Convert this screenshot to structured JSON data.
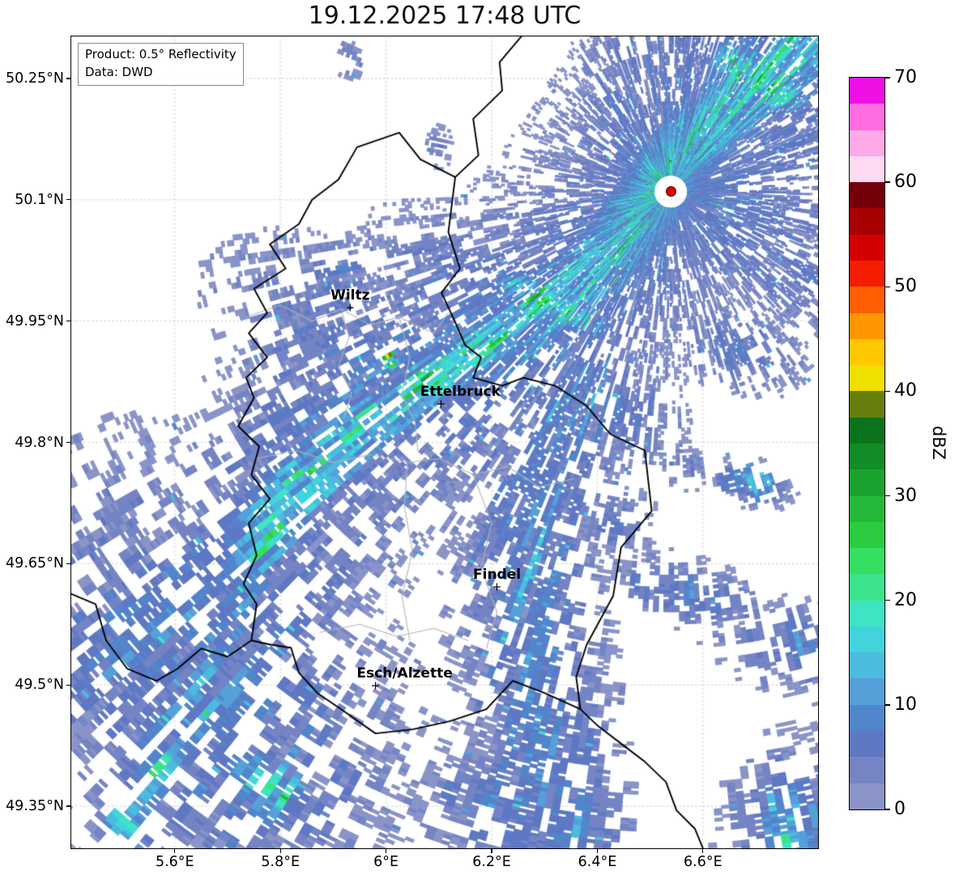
{
  "title": "19.12.2025 17:48 UTC",
  "info_box": {
    "product": "Product: 0.5° Reflectivity",
    "data_source": "Data: DWD"
  },
  "map": {
    "extent": {
      "lon_min": 5.404,
      "lon_max": 6.818,
      "lat_min": 49.298,
      "lat_max": 50.302
    },
    "x_ticks": [
      {
        "value": 5.6,
        "label": "5.6°E"
      },
      {
        "value": 5.8,
        "label": "5.8°E"
      },
      {
        "value": 6.0,
        "label": "6°E"
      },
      {
        "value": 6.2,
        "label": "6.2°E"
      },
      {
        "value": 6.4,
        "label": "6.4°E"
      },
      {
        "value": 6.6,
        "label": "6.6°E"
      }
    ],
    "y_ticks": [
      {
        "value": 50.25,
        "label": "50.25°N"
      },
      {
        "value": 50.1,
        "label": "50.1°N"
      },
      {
        "value": 49.95,
        "label": "49.95°N"
      },
      {
        "value": 49.8,
        "label": "49.8°N"
      },
      {
        "value": 49.65,
        "label": "49.65°N"
      },
      {
        "value": 49.5,
        "label": "49.5°N"
      },
      {
        "value": 49.35,
        "label": "49.35°N"
      }
    ],
    "city_marker_glyph": "+",
    "cities": [
      {
        "name": "Wiltz",
        "lon": 5.932,
        "lat": 49.966,
        "label_dx": 0
      },
      {
        "name": "Ettelbruck",
        "lon": 6.104,
        "lat": 49.847,
        "label_dx": 24
      },
      {
        "name": "Findel",
        "lon": 6.21,
        "lat": 49.62,
        "label_dx": 0
      },
      {
        "name": "Esch/Alzette",
        "lon": 5.98,
        "lat": 49.498,
        "label_dx": 36
      }
    ],
    "radar_site": {
      "lon": 6.539,
      "lat": 50.11,
      "color": "#dd0000"
    },
    "country_borders": [
      [
        [
          6.025,
          50.183
        ],
        [
          6.065,
          50.15
        ],
        [
          6.131,
          50.128
        ],
        [
          6.118,
          50.06
        ],
        [
          6.14,
          50.015
        ],
        [
          6.105,
          49.985
        ],
        [
          6.13,
          49.95
        ],
        [
          6.15,
          49.92
        ],
        [
          6.18,
          49.905
        ],
        [
          6.165,
          49.88
        ],
        [
          6.22,
          49.87
        ],
        [
          6.26,
          49.88
        ],
        [
          6.32,
          49.87
        ],
        [
          6.38,
          49.845
        ],
        [
          6.425,
          49.81
        ],
        [
          6.49,
          49.79
        ],
        [
          6.503,
          49.715
        ],
        [
          6.445,
          49.67
        ],
        [
          6.43,
          49.61
        ],
        [
          6.38,
          49.55
        ],
        [
          6.36,
          49.51
        ],
        [
          6.368,
          49.47
        ],
        [
          6.3,
          49.49
        ],
        [
          6.24,
          49.505
        ],
        [
          6.19,
          49.47
        ],
        [
          6.12,
          49.455
        ],
        [
          6.05,
          49.445
        ],
        [
          5.98,
          49.44
        ],
        [
          5.915,
          49.47
        ],
        [
          5.87,
          49.49
        ],
        [
          5.835,
          49.515
        ],
        [
          5.82,
          49.546
        ],
        [
          5.78,
          49.55
        ],
        [
          5.745,
          49.555
        ],
        [
          5.755,
          49.6
        ],
        [
          5.73,
          49.625
        ],
        [
          5.755,
          49.66
        ],
        [
          5.74,
          49.7
        ],
        [
          5.78,
          49.73
        ],
        [
          5.745,
          49.76
        ],
        [
          5.76,
          49.795
        ],
        [
          5.72,
          49.82
        ],
        [
          5.75,
          49.855
        ],
        [
          5.735,
          49.88
        ],
        [
          5.775,
          49.905
        ],
        [
          5.74,
          49.935
        ],
        [
          5.775,
          49.96
        ],
        [
          5.75,
          49.99
        ],
        [
          5.81,
          50.015
        ],
        [
          5.78,
          50.045
        ],
        [
          5.835,
          50.07
        ],
        [
          5.86,
          50.1
        ],
        [
          5.91,
          50.125
        ],
        [
          5.945,
          50.165
        ],
        [
          6.025,
          50.183
        ]
      ],
      [
        [
          6.131,
          50.128
        ],
        [
          6.175,
          50.155
        ],
        [
          6.165,
          50.2
        ],
        [
          6.22,
          50.235
        ],
        [
          6.215,
          50.27
        ],
        [
          6.26,
          50.305
        ],
        [
          6.255,
          50.335
        ]
      ],
      [
        [
          5.395,
          49.615
        ],
        [
          5.45,
          49.6
        ],
        [
          5.47,
          49.555
        ],
        [
          5.51,
          49.52
        ],
        [
          5.565,
          49.505
        ],
        [
          5.605,
          49.52
        ],
        [
          5.65,
          49.545
        ],
        [
          5.7,
          49.535
        ],
        [
          5.745,
          49.555
        ]
      ],
      [
        [
          6.368,
          49.47
        ],
        [
          6.4,
          49.45
        ],
        [
          6.45,
          49.425
        ],
        [
          6.49,
          49.405
        ],
        [
          6.53,
          49.38
        ],
        [
          6.55,
          49.345
        ],
        [
          6.585,
          49.322
        ],
        [
          6.605,
          49.29
        ]
      ]
    ],
    "admin_borders": [
      [
        [
          5.735,
          49.955
        ],
        [
          5.8,
          49.97
        ],
        [
          5.86,
          49.95
        ],
        [
          5.915,
          49.965
        ],
        [
          5.97,
          49.945
        ],
        [
          6.025,
          49.955
        ],
        [
          6.09,
          49.935
        ],
        [
          6.118,
          49.96
        ]
      ],
      [
        [
          6.025,
          49.955
        ],
        [
          6.045,
          49.905
        ],
        [
          6.03,
          49.86
        ],
        [
          6.055,
          49.825
        ],
        [
          6.06,
          49.79
        ]
      ],
      [
        [
          5.755,
          49.78
        ],
        [
          5.83,
          49.79
        ],
        [
          5.9,
          49.775
        ],
        [
          5.97,
          49.785
        ],
        [
          6.04,
          49.775
        ],
        [
          6.1,
          49.78
        ],
        [
          6.165,
          49.76
        ]
      ],
      [
        [
          6.04,
          49.775
        ],
        [
          6.035,
          49.72
        ],
        [
          6.05,
          49.665
        ],
        [
          6.03,
          49.61
        ],
        [
          6.045,
          49.555
        ]
      ],
      [
        [
          6.165,
          49.76
        ],
        [
          6.23,
          49.77
        ],
        [
          6.29,
          49.745
        ],
        [
          6.355,
          49.755
        ]
      ],
      [
        [
          5.875,
          49.565
        ],
        [
          5.95,
          49.575
        ],
        [
          6.02,
          49.56
        ],
        [
          6.09,
          49.57
        ],
        [
          6.155,
          49.555
        ]
      ],
      [
        [
          6.165,
          49.76
        ],
        [
          6.2,
          49.7
        ],
        [
          6.18,
          49.645
        ],
        [
          6.21,
          49.59
        ],
        [
          6.19,
          49.545
        ]
      ],
      [
        [
          5.915,
          49.965
        ],
        [
          5.93,
          49.93
        ],
        [
          5.91,
          49.895
        ],
        [
          5.935,
          49.86
        ],
        [
          5.92,
          49.83
        ]
      ]
    ]
  },
  "colorbar": {
    "label": "dBZ",
    "min": 0,
    "max": 70,
    "step": 2.5,
    "ticks": [
      {
        "value": 0,
        "label": "0"
      },
      {
        "value": 10,
        "label": "10"
      },
      {
        "value": 20,
        "label": "20"
      },
      {
        "value": 30,
        "label": "30"
      },
      {
        "value": 40,
        "label": "40"
      },
      {
        "value": 50,
        "label": "50"
      },
      {
        "value": 60,
        "label": "60"
      },
      {
        "value": 70,
        "label": "70"
      }
    ],
    "colors": [
      "#8a94c8",
      "#7484c4",
      "#5f78c4",
      "#5286cc",
      "#55a0d8",
      "#4cbbe0",
      "#41d4dc",
      "#3fe4c3",
      "#3be48c",
      "#35df5f",
      "#2ccc41",
      "#24b939",
      "#1ba32f",
      "#128c26",
      "#0a741d",
      "#677f0a",
      "#f0e000",
      "#ffc800",
      "#ff9600",
      "#ff5f00",
      "#f51d00",
      "#d40000",
      "#a80000",
      "#730009",
      "#ffd9f2",
      "#ffaae8",
      "#ff6ce0",
      "#ee10e4"
    ]
  },
  "radar_field": {
    "radar_center": {
      "lon": 6.539,
      "lat": 50.11
    },
    "components": [
      {
        "kind": "band",
        "amp": 22,
        "sigma": 0.012,
        "pts": [
          [
            6.84,
            50.33
          ],
          [
            6.72,
            50.265
          ],
          [
            6.6,
            50.19
          ],
          [
            6.52,
            50.13
          ],
          [
            6.465,
            50.065
          ],
          [
            6.4,
            50.015
          ],
          [
            6.315,
            49.975
          ],
          [
            6.23,
            49.935
          ],
          [
            6.13,
            49.895
          ],
          [
            6.045,
            49.86
          ],
          [
            5.975,
            49.835
          ]
        ]
      },
      {
        "kind": "blob",
        "amp": 27,
        "c": [
          6.31,
          49.972
        ],
        "sx": 0.05,
        "sy": 0.016,
        "rot": -25
      },
      {
        "kind": "blob",
        "amp": 25,
        "c": [
          6.08,
          49.878
        ],
        "sx": 0.035,
        "sy": 0.014,
        "rot": -18
      },
      {
        "kind": "blob",
        "amp": 25,
        "c": [
          6.7,
          50.25
        ],
        "sx": 0.05,
        "sy": 0.02,
        "rot": -32
      },
      {
        "kind": "blob",
        "amp": 23,
        "c": [
          6.47,
          50.08
        ],
        "sx": 0.03,
        "sy": 0.014,
        "rot": -40
      },
      {
        "kind": "band",
        "amp": 18,
        "sigma": 0.035,
        "pts": [
          [
            6.84,
            50.33
          ],
          [
            6.7,
            50.25
          ],
          [
            6.56,
            50.16
          ],
          [
            6.47,
            50.075
          ],
          [
            6.4,
            50.015
          ],
          [
            6.31,
            49.972
          ],
          [
            6.22,
            49.93
          ],
          [
            6.12,
            49.89
          ],
          [
            6.03,
            49.855
          ],
          [
            5.95,
            49.825
          ],
          [
            5.88,
            49.79
          ],
          [
            5.82,
            49.735
          ],
          [
            5.765,
            49.675
          ]
        ]
      },
      {
        "kind": "band",
        "amp": 8.5,
        "sigma": 0.085,
        "pts": [
          [
            6.82,
            50.33
          ],
          [
            6.68,
            50.24
          ],
          [
            6.55,
            50.155
          ],
          [
            6.46,
            50.07
          ],
          [
            6.39,
            50.01
          ],
          [
            6.3,
            49.965
          ],
          [
            6.2,
            49.925
          ],
          [
            6.1,
            49.885
          ],
          [
            6.0,
            49.85
          ],
          [
            5.92,
            49.81
          ],
          [
            5.855,
            49.755
          ],
          [
            5.79,
            49.69
          ],
          [
            5.73,
            49.62
          ]
        ]
      },
      {
        "kind": "blob",
        "amp": 10,
        "c": [
          5.63,
          49.5
        ],
        "sx": 0.17,
        "sy": 0.12,
        "rot": -53
      },
      {
        "kind": "blob",
        "amp": 8,
        "c": [
          5.56,
          49.615
        ],
        "sx": 0.08,
        "sy": 0.045,
        "rot": -10
      },
      {
        "kind": "band",
        "amp": 16,
        "sigma": 0.022,
        "pts": [
          [
            5.885,
            49.775
          ],
          [
            5.81,
            49.7
          ],
          [
            5.74,
            49.625
          ],
          [
            5.675,
            49.545
          ],
          [
            5.615,
            49.465
          ],
          [
            5.555,
            49.39
          ],
          [
            5.51,
            49.335
          ]
        ]
      },
      {
        "kind": "blob",
        "amp": 19,
        "c": [
          5.775,
          49.37
        ],
        "sx": 0.045,
        "sy": 0.035,
        "rot": -40
      },
      {
        "kind": "blob",
        "amp": 8,
        "c": [
          5.935,
          49.925
        ],
        "sx": 0.1,
        "sy": 0.055,
        "rot": -28
      },
      {
        "kind": "blob",
        "amp": 7,
        "c": [
          5.9,
          50.005
        ],
        "sx": 0.035,
        "sy": 0.025,
        "rot": 0
      },
      {
        "kind": "blob",
        "amp": 8,
        "c": [
          6.17,
          49.985
        ],
        "sx": 0.085,
        "sy": 0.05,
        "rot": -22
      },
      {
        "kind": "blob",
        "amp": 8,
        "c": [
          6.625,
          50.105
        ],
        "sx": 0.11,
        "sy": 0.075,
        "rot": -30
      },
      {
        "kind": "band",
        "amp": 7.5,
        "sigma": 0.03,
        "pts": [
          [
            6.545,
            50.13
          ],
          [
            6.565,
            50.21
          ],
          [
            6.55,
            50.3
          ]
        ]
      },
      {
        "kind": "blob",
        "amp": 7,
        "c": [
          6.44,
          50.21
        ],
        "sx": 0.035,
        "sy": 0.03,
        "rot": 0
      },
      {
        "kind": "blob",
        "amp": 7,
        "c": [
          6.8,
          50.01
        ],
        "sx": 0.05,
        "sy": 0.04,
        "rot": 0
      },
      {
        "kind": "blob",
        "amp": 6,
        "c": [
          6.38,
          50.11
        ],
        "sx": 0.03,
        "sy": 0.04,
        "rot": 0
      },
      {
        "kind": "blob",
        "amp": 7,
        "c": [
          6.76,
          50.17
        ],
        "sx": 0.05,
        "sy": 0.04,
        "rot": -30
      },
      {
        "kind": "blob",
        "amp": 7,
        "c": [
          6.47,
          50.27
        ],
        "sx": 0.04,
        "sy": 0.035,
        "rot": 0
      },
      {
        "kind": "band",
        "amp": 10,
        "sigma": 0.05,
        "pts": [
          [
            6.37,
            49.875
          ],
          [
            6.325,
            49.81
          ],
          [
            6.29,
            49.74
          ],
          [
            6.27,
            49.66
          ],
          [
            6.27,
            49.575
          ],
          [
            6.285,
            49.495
          ],
          [
            6.3,
            49.42
          ],
          [
            6.315,
            49.35
          ],
          [
            6.325,
            49.29
          ]
        ]
      },
      {
        "kind": "blob",
        "amp": 8,
        "c": [
          6.43,
          49.84
        ],
        "sx": 0.05,
        "sy": 0.035,
        "rot": -25
      },
      {
        "kind": "blob",
        "amp": 8,
        "c": [
          6.2,
          49.36
        ],
        "sx": 0.055,
        "sy": 0.055,
        "rot": 0
      },
      {
        "kind": "blob",
        "amp": 7,
        "c": [
          6.43,
          49.7
        ],
        "sx": 0.03,
        "sy": 0.025,
        "rot": 0
      },
      {
        "kind": "blob",
        "amp": 11,
        "c": [
          6.565,
          49.615
        ],
        "sx": 0.05,
        "sy": 0.022,
        "rot": -15
      },
      {
        "kind": "blob",
        "amp": 17,
        "c": [
          6.69,
          49.75
        ],
        "sx": 0.025,
        "sy": 0.014,
        "rot": -15
      },
      {
        "kind": "blob",
        "amp": 9,
        "c": [
          6.78,
          49.545
        ],
        "sx": 0.06,
        "sy": 0.03,
        "rot": -15
      },
      {
        "kind": "blob",
        "amp": 16,
        "c": [
          6.8,
          49.325
        ],
        "sx": 0.05,
        "sy": 0.055,
        "rot": 0
      },
      {
        "kind": "blob",
        "amp": 7,
        "c": [
          6.66,
          49.92
        ],
        "sx": 0.05,
        "sy": 0.03,
        "rot": -20
      },
      {
        "kind": "blob",
        "amp": 7,
        "c": [
          5.932,
          50.272
        ],
        "sx": 0.008,
        "sy": 0.016,
        "rot": 0
      },
      {
        "kind": "blob",
        "amp": 5,
        "c": [
          6.1,
          50.165
        ],
        "sx": 0.01,
        "sy": 0.015,
        "rot": 0
      },
      {
        "kind": "blob",
        "amp": 6,
        "c": [
          6.56,
          49.77
        ],
        "sx": 0.022,
        "sy": 0.015,
        "rot": -20
      },
      {
        "kind": "blob",
        "amp": 34,
        "c": [
          6.005,
          49.905
        ],
        "sx": 0.006,
        "sy": 0.012,
        "rot": 20
      }
    ]
  }
}
